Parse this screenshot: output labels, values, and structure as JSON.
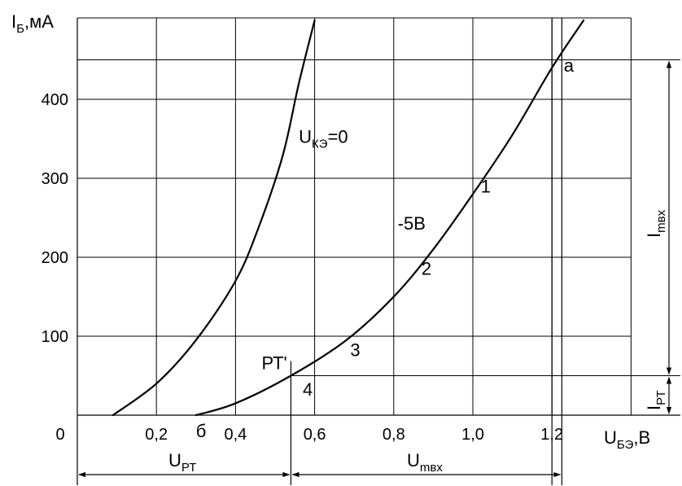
{
  "chart_data": {
    "type": "line",
    "title": "",
    "xlabel": {
      "main": "U",
      "sub": "БЭ",
      "rest": ",В"
    },
    "ylabel": {
      "main": "I",
      "sub": "Б",
      "rest": ",мА"
    },
    "xlim": [
      -0.2,
      1.5
    ],
    "ylim": [
      -90,
      500
    ],
    "grid": true,
    "origin_label": "0",
    "x_ticks": [
      {
        "value": 0.2,
        "label": "0,2"
      },
      {
        "value": 0.4,
        "label": "0,4"
      },
      {
        "value": 0.6,
        "label": "0,6"
      },
      {
        "value": 0.8,
        "label": "0,8"
      },
      {
        "value": 1.0,
        "label": "1,0"
      },
      {
        "value": 1.2,
        "label": "1,2"
      }
    ],
    "y_ticks": [
      {
        "value": 100,
        "label": "100"
      },
      {
        "value": 200,
        "label": "200"
      },
      {
        "value": 300,
        "label": "300"
      },
      {
        "value": 400,
        "label": "400"
      }
    ],
    "extra_gridlines_y": [
      450,
      50
    ],
    "series": [
      {
        "name": "",
        "x": [
          0.09,
          0.2,
          0.3,
          0.4,
          0.46,
          0.52,
          0.56,
          0.6
        ],
        "y": [
          0,
          40,
          95,
          170,
          240,
          330,
          420,
          500
        ]
      },
      {
        "name": "",
        "x": [
          0.3,
          0.4,
          0.54,
          0.68,
          0.8,
          0.9,
          1.0,
          1.1,
          1.2,
          1.28
        ],
        "y": [
          0,
          15,
          50,
          95,
          150,
          210,
          280,
          355,
          440,
          500
        ]
      }
    ],
    "curve_labels": [
      {
        "main": "U",
        "sub": "КЭ",
        "rest": "=0",
        "x": 0.56,
        "y": 345
      },
      {
        "main": "-5В",
        "sub": "",
        "rest": "",
        "x": 0.81,
        "y": 235
      }
    ],
    "points": [
      {
        "label": "а",
        "x": 1.23,
        "y": 435
      },
      {
        "label": "1",
        "x": 1.02,
        "y": 282
      },
      {
        "label": "2",
        "x": 0.87,
        "y": 178
      },
      {
        "label": "3",
        "x": 0.69,
        "y": 75
      },
      {
        "label": "4",
        "x": 0.57,
        "y": 25
      },
      {
        "label": "б",
        "x": 0.3,
        "y": -28
      }
    ],
    "operating_point": {
      "label": "РТ'",
      "x": 0.54,
      "y": 50
    },
    "vertical_markers_x": [
      0.54,
      1.2,
      1.225
    ],
    "annotations": {
      "upt": {
        "main": "U",
        "sub": "РТ"
      },
      "umvx": {
        "main": "U",
        "sub": "mвх"
      },
      "imvx": {
        "main": "I",
        "sub": "mвх"
      },
      "ipt": {
        "main": "I",
        "sub": "РТ"
      }
    }
  }
}
